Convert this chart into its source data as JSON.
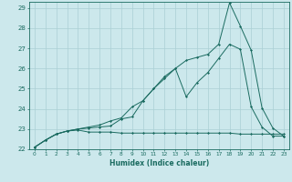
{
  "xlabel": "Humidex (Indice chaleur)",
  "xlim": [
    -0.5,
    23.5
  ],
  "ylim": [
    22,
    29.3
  ],
  "xticks": [
    0,
    1,
    2,
    3,
    4,
    5,
    6,
    7,
    8,
    9,
    10,
    11,
    12,
    13,
    14,
    15,
    16,
    17,
    18,
    19,
    20,
    21,
    22,
    23
  ],
  "yticks": [
    22,
    23,
    24,
    25,
    26,
    27,
    28,
    29
  ],
  "bg_color": "#cce8ec",
  "line_color": "#1a6b60",
  "grid_color": "#aacfd4",
  "line1_x": [
    0,
    1,
    2,
    3,
    4,
    5,
    6,
    7,
    8,
    9,
    10,
    11,
    12,
    13,
    14,
    15,
    16,
    17,
    18,
    19,
    20,
    21,
    22,
    23
  ],
  "line1_y": [
    22.1,
    22.45,
    22.75,
    22.9,
    22.95,
    22.85,
    22.85,
    22.85,
    22.8,
    22.8,
    22.8,
    22.8,
    22.8,
    22.8,
    22.8,
    22.8,
    22.8,
    22.8,
    22.8,
    22.75,
    22.75,
    22.75,
    22.75,
    22.75
  ],
  "line2_x": [
    0,
    1,
    2,
    3,
    4,
    5,
    6,
    7,
    8,
    9,
    10,
    11,
    12,
    13,
    14,
    15,
    16,
    17,
    18,
    19,
    20,
    21,
    22,
    23
  ],
  "line2_y": [
    22.1,
    22.45,
    22.75,
    22.9,
    23.0,
    23.05,
    23.1,
    23.15,
    23.5,
    23.6,
    24.4,
    25.0,
    25.5,
    26.0,
    24.6,
    25.3,
    25.8,
    26.5,
    27.2,
    26.95,
    24.1,
    23.1,
    22.65,
    22.65
  ],
  "line3_x": [
    0,
    1,
    2,
    3,
    4,
    5,
    6,
    7,
    8,
    9,
    10,
    11,
    12,
    13,
    14,
    15,
    16,
    17,
    18,
    19,
    20,
    21,
    22,
    23
  ],
  "line3_y": [
    22.1,
    22.45,
    22.75,
    22.9,
    23.0,
    23.1,
    23.2,
    23.4,
    23.55,
    24.1,
    24.4,
    25.0,
    25.6,
    26.0,
    26.4,
    26.55,
    26.7,
    27.2,
    29.25,
    28.1,
    26.9,
    24.05,
    23.05,
    22.65
  ]
}
